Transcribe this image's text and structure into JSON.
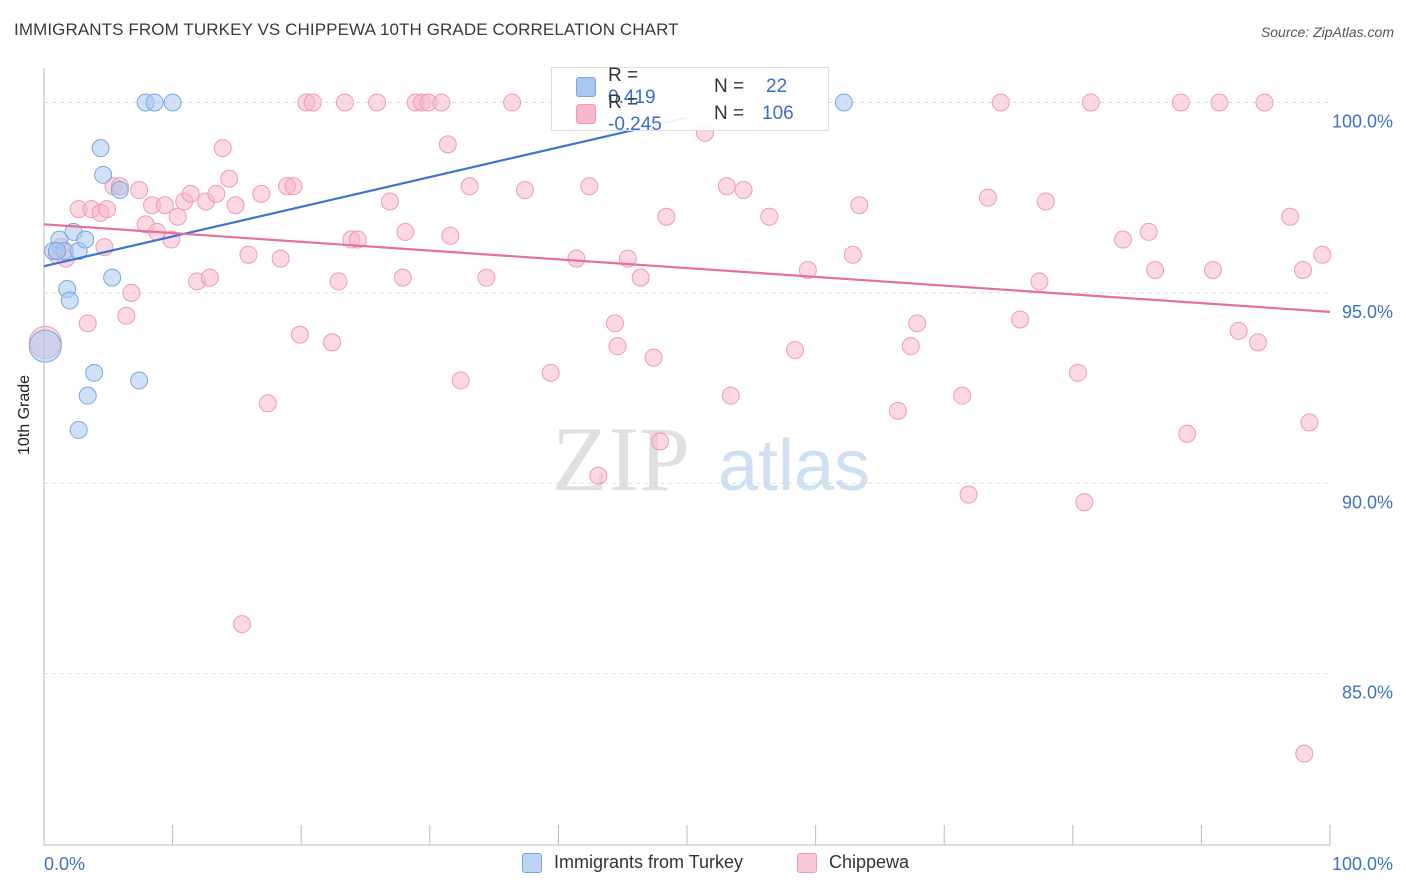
{
  "title": "IMMIGRANTS FROM TURKEY VS CHIPPEWA 10TH GRADE CORRELATION CHART",
  "source": "Source: ZipAtlas.com",
  "watermark": {
    "zip": "ZIP",
    "atlas": "atlas"
  },
  "legend": {
    "series1": {
      "r_label": "R =",
      "r_value": "0.419",
      "n_label": "N =",
      "n_value": "22"
    },
    "series2": {
      "r_label": "R =",
      "r_value": "-0.245",
      "n_label": "N =",
      "n_value": "106"
    }
  },
  "colors": {
    "blue_fill": "#a9c8f0",
    "blue_stroke": "#7aa7e0",
    "blue_line": "#3a75d0",
    "pink_fill": "#f7b8cb",
    "pink_stroke": "#ef9bb6",
    "pink_line": "#e56f98",
    "tick_text": "#3d72c4",
    "grid": "#dddddd"
  },
  "chart_data": {
    "type": "scatter",
    "xlabel": "",
    "ylabel": "10th Grade",
    "xlim": [
      0,
      100
    ],
    "ylim": [
      80.5,
      100.8
    ],
    "x_tick_labels": [
      "0.0%",
      "100.0%"
    ],
    "y_ticks": [
      85,
      90,
      95,
      100
    ],
    "y_tick_labels": [
      "85.0%",
      "90.0%",
      "95.0%",
      "100.0%"
    ],
    "grid": true,
    "legend_position": "top-center",
    "series": [
      {
        "name": "Immigrants from Turkey",
        "trend": {
          "x": [
            0,
            50
          ],
          "y": [
            95.7,
            99.6
          ]
        },
        "points": [
          {
            "x": 0.1,
            "y": 93.6,
            "s": 16
          },
          {
            "x": 0.7,
            "y": 96.1
          },
          {
            "x": 1.2,
            "y": 96.4
          },
          {
            "x": 1.6,
            "y": 96.1
          },
          {
            "x": 1.8,
            "y": 95.1
          },
          {
            "x": 2.0,
            "y": 94.8
          },
          {
            "x": 2.3,
            "y": 96.6
          },
          {
            "x": 2.7,
            "y": 96.1
          },
          {
            "x": 3.2,
            "y": 96.4
          },
          {
            "x": 2.7,
            "y": 91.4
          },
          {
            "x": 3.4,
            "y": 92.3
          },
          {
            "x": 3.9,
            "y": 92.9
          },
          {
            "x": 4.4,
            "y": 98.8
          },
          {
            "x": 4.6,
            "y": 98.1
          },
          {
            "x": 5.3,
            "y": 95.4
          },
          {
            "x": 5.9,
            "y": 97.7
          },
          {
            "x": 7.4,
            "y": 92.7
          },
          {
            "x": 7.9,
            "y": 100.0
          },
          {
            "x": 8.6,
            "y": 100.0
          },
          {
            "x": 10.0,
            "y": 100.0
          },
          {
            "x": 62.2,
            "y": 100.0
          },
          {
            "x": 1.0,
            "y": 96.1
          }
        ]
      },
      {
        "name": "Chippewa",
        "trend": {
          "x": [
            0,
            100
          ],
          "y": [
            96.8,
            94.5
          ]
        },
        "points": [
          {
            "x": 0.1,
            "y": 93.7,
            "s": 16
          },
          {
            "x": 1.0,
            "y": 96.0
          },
          {
            "x": 1.3,
            "y": 96.2
          },
          {
            "x": 1.7,
            "y": 95.9
          },
          {
            "x": 2.7,
            "y": 97.2
          },
          {
            "x": 3.4,
            "y": 94.2
          },
          {
            "x": 3.7,
            "y": 97.2
          },
          {
            "x": 4.4,
            "y": 97.1
          },
          {
            "x": 4.7,
            "y": 96.2
          },
          {
            "x": 4.9,
            "y": 97.2
          },
          {
            "x": 5.4,
            "y": 97.8
          },
          {
            "x": 5.9,
            "y": 97.8
          },
          {
            "x": 6.4,
            "y": 94.4
          },
          {
            "x": 6.8,
            "y": 95.0
          },
          {
            "x": 7.4,
            "y": 97.7
          },
          {
            "x": 7.9,
            "y": 96.8
          },
          {
            "x": 8.4,
            "y": 97.3
          },
          {
            "x": 8.8,
            "y": 96.6
          },
          {
            "x": 9.4,
            "y": 97.3
          },
          {
            "x": 9.9,
            "y": 96.4
          },
          {
            "x": 10.4,
            "y": 97.0
          },
          {
            "x": 10.9,
            "y": 97.4
          },
          {
            "x": 11.4,
            "y": 97.6
          },
          {
            "x": 11.9,
            "y": 95.3
          },
          {
            "x": 12.6,
            "y": 97.4
          },
          {
            "x": 12.9,
            "y": 95.4
          },
          {
            "x": 13.4,
            "y": 97.6
          },
          {
            "x": 13.9,
            "y": 98.8
          },
          {
            "x": 14.4,
            "y": 98.0
          },
          {
            "x": 14.9,
            "y": 97.3
          },
          {
            "x": 15.4,
            "y": 86.3
          },
          {
            "x": 15.9,
            "y": 96.0
          },
          {
            "x": 16.9,
            "y": 97.6
          },
          {
            "x": 17.4,
            "y": 92.1
          },
          {
            "x": 18.4,
            "y": 95.9
          },
          {
            "x": 18.9,
            "y": 97.8
          },
          {
            "x": 19.4,
            "y": 97.8
          },
          {
            "x": 19.9,
            "y": 93.9
          },
          {
            "x": 20.4,
            "y": 100.0
          },
          {
            "x": 20.9,
            "y": 100.0
          },
          {
            "x": 22.4,
            "y": 93.7
          },
          {
            "x": 22.9,
            "y": 95.3
          },
          {
            "x": 23.4,
            "y": 100.0
          },
          {
            "x": 23.9,
            "y": 96.4
          },
          {
            "x": 24.4,
            "y": 96.4
          },
          {
            "x": 25.9,
            "y": 100.0
          },
          {
            "x": 26.9,
            "y": 97.4
          },
          {
            "x": 27.9,
            "y": 95.4
          },
          {
            "x": 28.1,
            "y": 96.6
          },
          {
            "x": 28.9,
            "y": 100.0
          },
          {
            "x": 29.4,
            "y": 100.0
          },
          {
            "x": 29.9,
            "y": 100.0
          },
          {
            "x": 30.9,
            "y": 100.0
          },
          {
            "x": 31.4,
            "y": 98.9
          },
          {
            "x": 31.6,
            "y": 96.5
          },
          {
            "x": 32.4,
            "y": 92.7
          },
          {
            "x": 33.1,
            "y": 97.8
          },
          {
            "x": 34.4,
            "y": 95.4
          },
          {
            "x": 36.4,
            "y": 100.0
          },
          {
            "x": 37.4,
            "y": 97.7
          },
          {
            "x": 39.4,
            "y": 92.9
          },
          {
            "x": 41.4,
            "y": 95.9
          },
          {
            "x": 42.4,
            "y": 97.8
          },
          {
            "x": 43.1,
            "y": 90.2
          },
          {
            "x": 44.4,
            "y": 94.2
          },
          {
            "x": 44.6,
            "y": 93.6
          },
          {
            "x": 45.4,
            "y": 95.9
          },
          {
            "x": 46.4,
            "y": 95.4
          },
          {
            "x": 47.4,
            "y": 93.3
          },
          {
            "x": 47.9,
            "y": 91.1
          },
          {
            "x": 48.4,
            "y": 97.0
          },
          {
            "x": 51.4,
            "y": 99.2
          },
          {
            "x": 53.1,
            "y": 97.8
          },
          {
            "x": 53.4,
            "y": 92.3
          },
          {
            "x": 54.4,
            "y": 97.7
          },
          {
            "x": 56.4,
            "y": 97.0
          },
          {
            "x": 58.4,
            "y": 93.5
          },
          {
            "x": 59.4,
            "y": 95.6
          },
          {
            "x": 62.9,
            "y": 96.0
          },
          {
            "x": 63.4,
            "y": 97.3
          },
          {
            "x": 66.4,
            "y": 91.9
          },
          {
            "x": 67.4,
            "y": 93.6
          },
          {
            "x": 67.9,
            "y": 94.2
          },
          {
            "x": 71.4,
            "y": 92.3
          },
          {
            "x": 71.9,
            "y": 89.7
          },
          {
            "x": 73.4,
            "y": 97.5
          },
          {
            "x": 74.4,
            "y": 100.0
          },
          {
            "x": 75.9,
            "y": 94.3
          },
          {
            "x": 77.4,
            "y": 95.3
          },
          {
            "x": 77.9,
            "y": 97.4
          },
          {
            "x": 80.4,
            "y": 92.9
          },
          {
            "x": 80.9,
            "y": 89.5
          },
          {
            "x": 81.4,
            "y": 100.0
          },
          {
            "x": 83.9,
            "y": 96.4
          },
          {
            "x": 85.9,
            "y": 96.6
          },
          {
            "x": 86.4,
            "y": 95.6
          },
          {
            "x": 88.4,
            "y": 100.0
          },
          {
            "x": 88.9,
            "y": 91.3
          },
          {
            "x": 90.9,
            "y": 95.6
          },
          {
            "x": 91.4,
            "y": 100.0
          },
          {
            "x": 92.9,
            "y": 94.0
          },
          {
            "x": 94.4,
            "y": 93.7
          },
          {
            "x": 94.9,
            "y": 100.0
          },
          {
            "x": 96.9,
            "y": 97.0
          },
          {
            "x": 97.9,
            "y": 95.6
          },
          {
            "x": 98.4,
            "y": 91.6
          },
          {
            "x": 99.4,
            "y": 96.0
          },
          {
            "x": 98.0,
            "y": 82.9
          }
        ]
      }
    ]
  }
}
